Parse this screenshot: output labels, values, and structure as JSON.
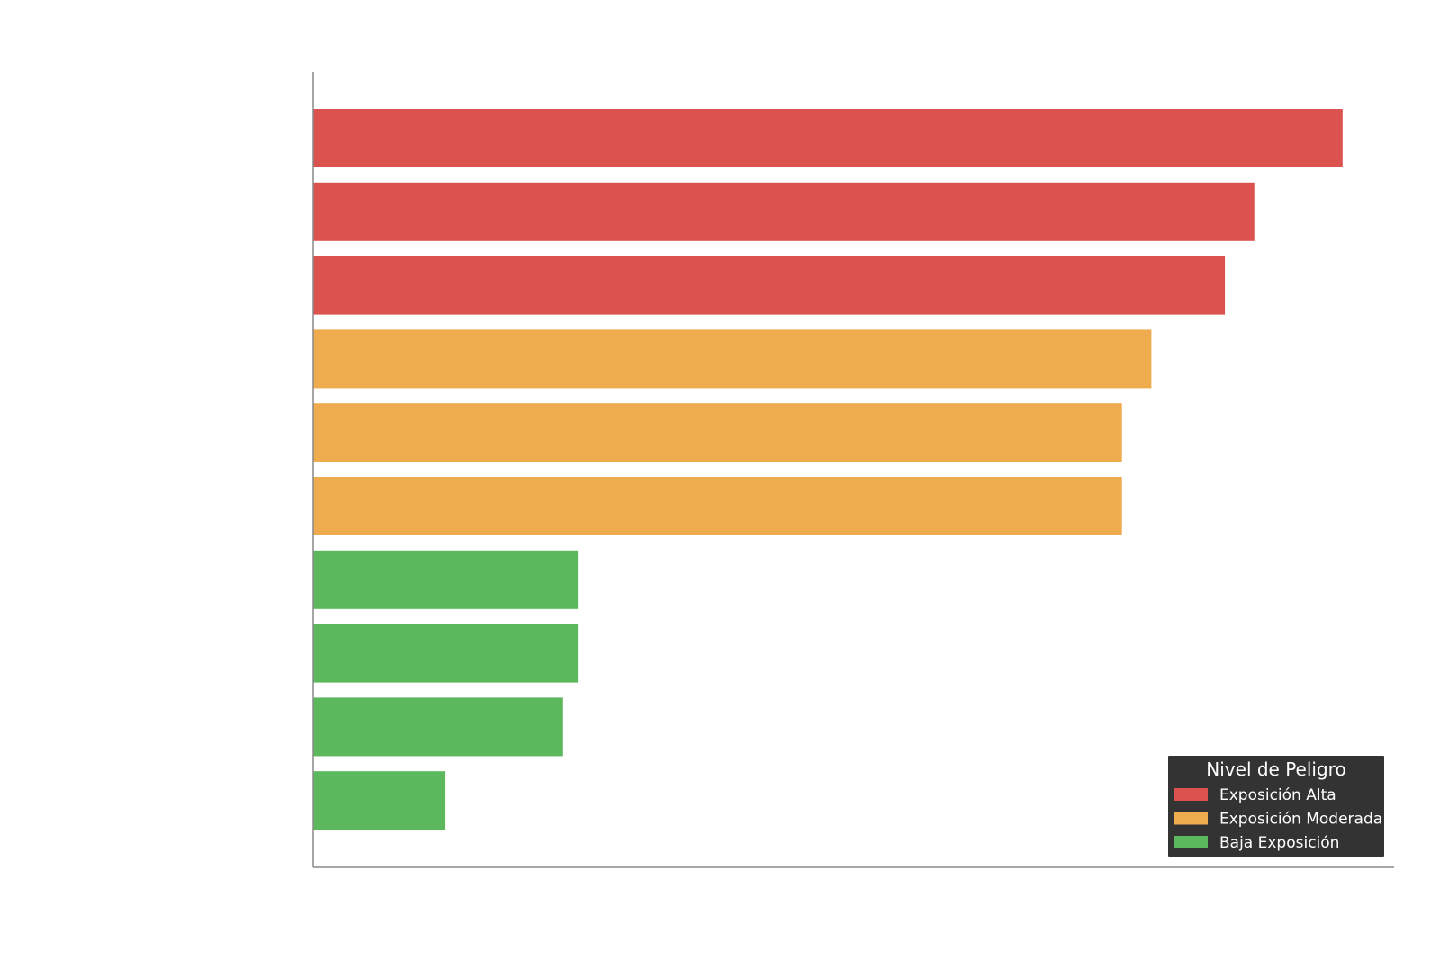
{
  "chart_data": {
    "type": "bar",
    "orientation": "horizontal",
    "categories": [
      "",
      "",
      "",
      "",
      "",
      "",
      "",
      "",
      "",
      ""
    ],
    "values": [
      70,
      64,
      62,
      57,
      55,
      55,
      18,
      18,
      17,
      9
    ],
    "levels": [
      "alta",
      "alta",
      "alta",
      "moderada",
      "moderada",
      "moderada",
      "baja",
      "baja",
      "baja",
      "baja"
    ],
    "xlim": [
      0,
      73.5
    ],
    "title": "",
    "xlabel": "",
    "ylabel": "",
    "grid": false,
    "legend": {
      "title": "Nivel de Peligro",
      "placement": "bottom-right",
      "entries": [
        {
          "key": "alta",
          "label": "Exposición Alta",
          "color": "#db524e"
        },
        {
          "key": "moderada",
          "label": "Exposición Moderada",
          "color": "#efac4f"
        },
        {
          "key": "baja",
          "label": "Baja Exposición",
          "color": "#5cb85c"
        }
      ]
    },
    "colors": {
      "axis": "#888888",
      "legend_bg": "#333333"
    }
  }
}
